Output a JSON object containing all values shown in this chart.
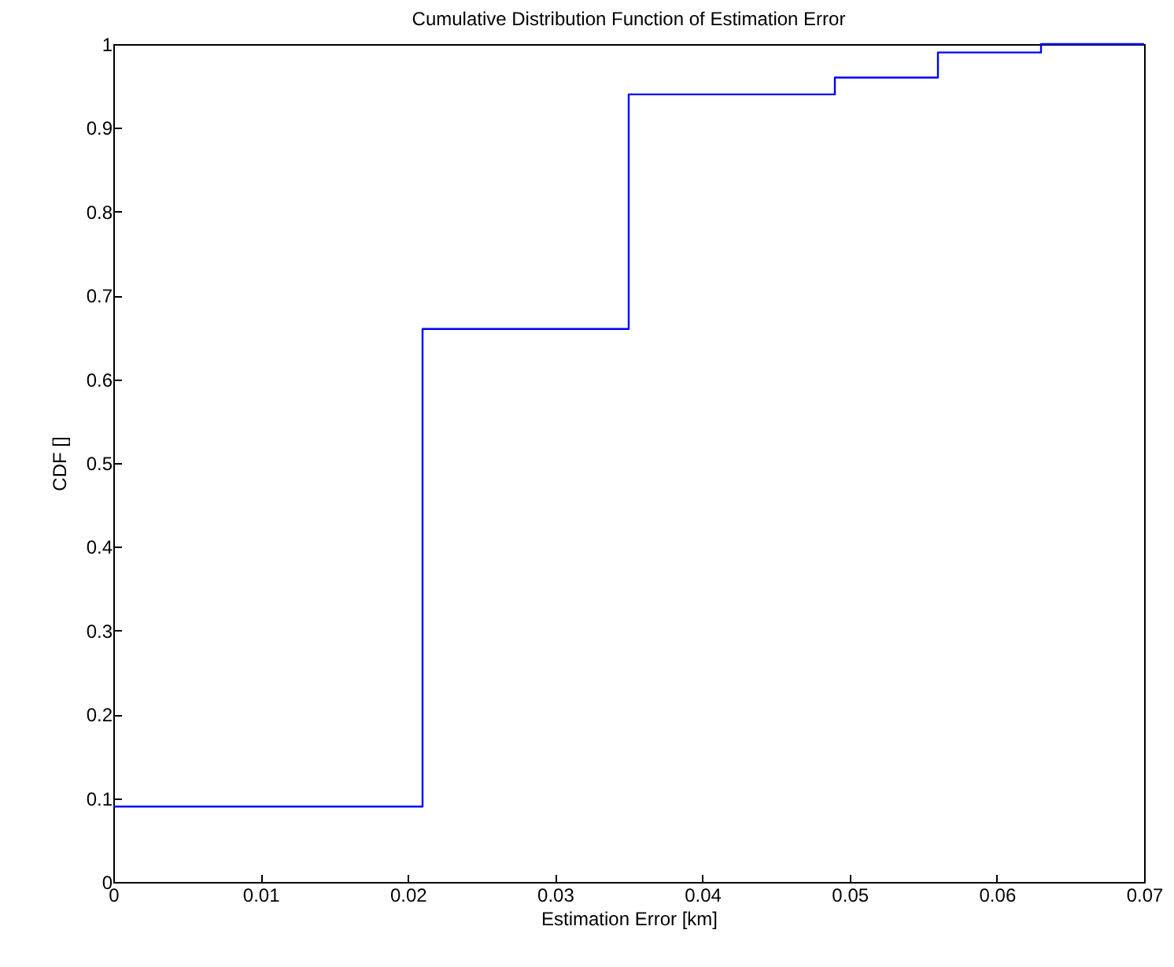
{
  "chart_data": {
    "type": "step",
    "title": "Cumulative Distribution Function of Estimation Error",
    "xlabel": "Estimation Error [km]",
    "ylabel": "CDF []",
    "x": [
      0,
      0.021,
      0.035,
      0.049,
      0.056,
      0.063,
      0.07
    ],
    "series": [
      {
        "color": "#0000ff",
        "values": [
          0.09,
          0.66,
          0.94,
          0.96,
          0.99,
          1,
          1
        ]
      }
    ],
    "xlim": [
      0,
      0.07
    ],
    "xticks": [
      0,
      0.01,
      0.02,
      0.03,
      0.04,
      0.05,
      0.06,
      0.07
    ],
    "ylim": [
      0,
      1
    ],
    "yticks": [
      0,
      0.1,
      0.2,
      0.3,
      0.4,
      0.5,
      0.6,
      0.7,
      0.8,
      0.9,
      1
    ],
    "grid": false,
    "marker": "none",
    "line_style": "solid"
  }
}
